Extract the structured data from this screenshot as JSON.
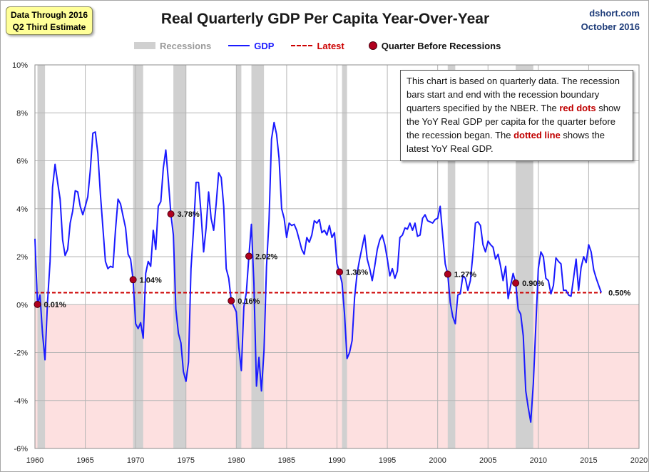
{
  "badge": {
    "line1": "Data Through 2016",
    "line2": "Q2 Third Estimate"
  },
  "title": "Real Quarterly GDP Per Capita Year-Over-Year",
  "source": {
    "site": "dshort.com",
    "date": "October 2016"
  },
  "legend": {
    "recessions": "Recessions",
    "gdp": "GDP",
    "latest": "Latest",
    "quarter_before": "Quarter Before Recessions"
  },
  "note": {
    "part1": "This chart is based on quarterly data. The recession bars start and end with the recession boundary quarters specified by the  NBER. The ",
    "red_dots": "red dots",
    "part2": " show the YoY Real GDP per capita for the quarter before the recession began. The ",
    "dotted_line": "dotted line",
    "part3": "  shows the latest YoY Real GDP."
  },
  "colors": {
    "gdp_line": "#1a1aff",
    "latest_line": "#cc0000",
    "dot_fill": "#b0001e",
    "dot_stroke": "#4a0010",
    "recession_bar": "#d0d0d0",
    "negative_zone": "#fde0e0",
    "grid": "#b5b5b5",
    "source_text": "#1f3d7a"
  },
  "chart_data": {
    "type": "line",
    "title": "Real Quarterly GDP Per Capita Year-Over-Year",
    "xlabel": "",
    "ylabel": "",
    "xlim": [
      1960,
      2020
    ],
    "ylim": [
      -6,
      10
    ],
    "x_ticks": [
      1960,
      1965,
      1970,
      1975,
      1980,
      1985,
      1990,
      1995,
      2000,
      2005,
      2010,
      2015,
      2020
    ],
    "y_ticks": [
      -6,
      -4,
      -2,
      0,
      2,
      4,
      6,
      8,
      10
    ],
    "y_tick_labels": [
      "-6%",
      "-4%",
      "-2%",
      "0%",
      "2%",
      "4%",
      "6%",
      "8%",
      "10%"
    ],
    "grid": true,
    "legend_position": "top",
    "recessions": [
      [
        1960.25,
        1961.0
      ],
      [
        1969.75,
        1970.75
      ],
      [
        1973.75,
        1975.0
      ],
      [
        1980.0,
        1980.5
      ],
      [
        1981.5,
        1982.75
      ],
      [
        1990.5,
        1991.0
      ],
      [
        2001.0,
        2001.75
      ],
      [
        2007.75,
        2009.5
      ]
    ],
    "series": [
      {
        "name": "GDP",
        "points": [
          [
            1960.0,
            2.75
          ],
          [
            1960.25,
            0.01
          ],
          [
            1960.5,
            0.4
          ],
          [
            1960.75,
            -1.2
          ],
          [
            1961.0,
            -2.3
          ],
          [
            1961.25,
            0.1
          ],
          [
            1961.5,
            1.8
          ],
          [
            1961.75,
            4.9
          ],
          [
            1962.0,
            5.85
          ],
          [
            1962.25,
            5.1
          ],
          [
            1962.5,
            4.4
          ],
          [
            1962.75,
            2.7
          ],
          [
            1963.0,
            2.05
          ],
          [
            1963.25,
            2.3
          ],
          [
            1963.5,
            3.4
          ],
          [
            1963.75,
            3.9
          ],
          [
            1964.0,
            4.75
          ],
          [
            1964.25,
            4.7
          ],
          [
            1964.5,
            4.1
          ],
          [
            1964.75,
            3.75
          ],
          [
            1965.0,
            4.1
          ],
          [
            1965.25,
            4.5
          ],
          [
            1965.5,
            5.6
          ],
          [
            1965.75,
            7.15
          ],
          [
            1966.0,
            7.2
          ],
          [
            1966.25,
            6.3
          ],
          [
            1966.5,
            4.6
          ],
          [
            1966.75,
            3.2
          ],
          [
            1967.0,
            1.8
          ],
          [
            1967.25,
            1.5
          ],
          [
            1967.5,
            1.6
          ],
          [
            1967.75,
            1.55
          ],
          [
            1968.0,
            3.1
          ],
          [
            1968.25,
            4.4
          ],
          [
            1968.5,
            4.2
          ],
          [
            1968.75,
            3.7
          ],
          [
            1969.0,
            3.2
          ],
          [
            1969.25,
            2.1
          ],
          [
            1969.5,
            1.9
          ],
          [
            1969.75,
            1.04
          ],
          [
            1970.0,
            -0.8
          ],
          [
            1970.25,
            -1.0
          ],
          [
            1970.5,
            -0.75
          ],
          [
            1970.75,
            -1.4
          ],
          [
            1971.0,
            1.3
          ],
          [
            1971.25,
            1.8
          ],
          [
            1971.5,
            1.6
          ],
          [
            1971.75,
            3.1
          ],
          [
            1972.0,
            2.3
          ],
          [
            1972.25,
            4.1
          ],
          [
            1972.5,
            4.3
          ],
          [
            1972.75,
            5.7
          ],
          [
            1973.0,
            6.45
          ],
          [
            1973.25,
            5.2
          ],
          [
            1973.5,
            3.78
          ],
          [
            1973.75,
            2.9
          ],
          [
            1974.0,
            -0.2
          ],
          [
            1974.25,
            -1.2
          ],
          [
            1974.5,
            -1.6
          ],
          [
            1974.75,
            -2.8
          ],
          [
            1975.0,
            -3.2
          ],
          [
            1975.25,
            -2.4
          ],
          [
            1975.5,
            1.5
          ],
          [
            1975.75,
            3.1
          ],
          [
            1976.0,
            5.1
          ],
          [
            1976.25,
            5.1
          ],
          [
            1976.5,
            3.8
          ],
          [
            1976.75,
            2.2
          ],
          [
            1977.0,
            3.2
          ],
          [
            1977.25,
            4.7
          ],
          [
            1977.5,
            3.6
          ],
          [
            1977.75,
            3.1
          ],
          [
            1978.0,
            4.2
          ],
          [
            1978.25,
            5.5
          ],
          [
            1978.5,
            5.3
          ],
          [
            1978.75,
            4.1
          ],
          [
            1979.0,
            1.5
          ],
          [
            1979.25,
            1.1
          ],
          [
            1979.5,
            0.16
          ],
          [
            1980.0,
            -0.3
          ],
          [
            1980.25,
            -1.8
          ],
          [
            1980.5,
            -2.75
          ],
          [
            1980.75,
            -0.1
          ],
          [
            1981.0,
            0.5
          ],
          [
            1981.25,
            2.02
          ],
          [
            1981.5,
            3.35
          ],
          [
            1981.75,
            0.9
          ],
          [
            1982.0,
            -3.4
          ],
          [
            1982.25,
            -2.2
          ],
          [
            1982.5,
            -3.6
          ],
          [
            1982.75,
            -1.9
          ],
          [
            1983.0,
            1.6
          ],
          [
            1983.25,
            3.5
          ],
          [
            1983.5,
            6.9
          ],
          [
            1983.75,
            7.6
          ],
          [
            1984.0,
            7.1
          ],
          [
            1984.25,
            6.1
          ],
          [
            1984.5,
            4.0
          ],
          [
            1984.75,
            3.6
          ],
          [
            1985.0,
            2.8
          ],
          [
            1985.25,
            3.4
          ],
          [
            1985.5,
            3.3
          ],
          [
            1985.75,
            3.35
          ],
          [
            1986.0,
            3.1
          ],
          [
            1986.25,
            2.7
          ],
          [
            1986.5,
            2.3
          ],
          [
            1986.75,
            2.1
          ],
          [
            1987.0,
            2.8
          ],
          [
            1987.25,
            2.6
          ],
          [
            1987.5,
            2.9
          ],
          [
            1987.75,
            3.5
          ],
          [
            1988.0,
            3.4
          ],
          [
            1988.25,
            3.55
          ],
          [
            1988.5,
            3.0
          ],
          [
            1988.75,
            3.1
          ],
          [
            1989.0,
            2.9
          ],
          [
            1989.25,
            3.3
          ],
          [
            1989.5,
            2.8
          ],
          [
            1989.75,
            3.0
          ],
          [
            1990.0,
            1.7
          ],
          [
            1990.25,
            1.36
          ],
          [
            1990.5,
            0.9
          ],
          [
            1990.75,
            -0.4
          ],
          [
            1991.0,
            -2.25
          ],
          [
            1991.25,
            -2.0
          ],
          [
            1991.5,
            -1.5
          ],
          [
            1991.75,
            0.3
          ],
          [
            1992.0,
            1.3
          ],
          [
            1992.25,
            1.9
          ],
          [
            1992.5,
            2.4
          ],
          [
            1992.75,
            2.9
          ],
          [
            1993.0,
            1.9
          ],
          [
            1993.25,
            1.5
          ],
          [
            1993.5,
            1.0
          ],
          [
            1993.75,
            1.6
          ],
          [
            1994.0,
            2.3
          ],
          [
            1994.25,
            2.7
          ],
          [
            1994.5,
            2.9
          ],
          [
            1994.75,
            2.5
          ],
          [
            1995.0,
            1.9
          ],
          [
            1995.25,
            1.2
          ],
          [
            1995.5,
            1.5
          ],
          [
            1995.75,
            1.1
          ],
          [
            1996.0,
            1.4
          ],
          [
            1996.25,
            2.8
          ],
          [
            1996.5,
            2.9
          ],
          [
            1996.75,
            3.2
          ],
          [
            1997.0,
            3.15
          ],
          [
            1997.25,
            3.4
          ],
          [
            1997.5,
            3.1
          ],
          [
            1997.75,
            3.4
          ],
          [
            1998.0,
            2.85
          ],
          [
            1998.25,
            2.9
          ],
          [
            1998.5,
            3.6
          ],
          [
            1998.75,
            3.75
          ],
          [
            1999.0,
            3.5
          ],
          [
            1999.25,
            3.45
          ],
          [
            1999.5,
            3.4
          ],
          [
            1999.75,
            3.55
          ],
          [
            2000.0,
            3.6
          ],
          [
            2000.25,
            4.1
          ],
          [
            2000.5,
            2.9
          ],
          [
            2000.75,
            1.7
          ],
          [
            2001.0,
            1.27
          ],
          [
            2001.25,
            0.1
          ],
          [
            2001.5,
            -0.5
          ],
          [
            2001.75,
            -0.8
          ],
          [
            2002.0,
            0.4
          ],
          [
            2002.25,
            0.45
          ],
          [
            2002.5,
            1.2
          ],
          [
            2002.75,
            1.1
          ],
          [
            2003.0,
            0.6
          ],
          [
            2003.25,
            1.0
          ],
          [
            2003.5,
            2.1
          ],
          [
            2003.75,
            3.4
          ],
          [
            2004.0,
            3.45
          ],
          [
            2004.25,
            3.3
          ],
          [
            2004.5,
            2.5
          ],
          [
            2004.75,
            2.2
          ],
          [
            2005.0,
            2.65
          ],
          [
            2005.25,
            2.5
          ],
          [
            2005.5,
            2.4
          ],
          [
            2005.75,
            1.9
          ],
          [
            2006.0,
            2.1
          ],
          [
            2006.25,
            1.6
          ],
          [
            2006.5,
            1.0
          ],
          [
            2006.75,
            1.6
          ],
          [
            2007.0,
            0.25
          ],
          [
            2007.25,
            0.8
          ],
          [
            2007.5,
            1.3
          ],
          [
            2007.75,
            0.9
          ],
          [
            2008.0,
            -0.2
          ],
          [
            2008.25,
            -0.4
          ],
          [
            2008.5,
            -1.3
          ],
          [
            2008.75,
            -3.6
          ],
          [
            2009.0,
            -4.3
          ],
          [
            2009.25,
            -4.9
          ],
          [
            2009.5,
            -3.3
          ],
          [
            2009.75,
            -0.9
          ],
          [
            2010.0,
            1.5
          ],
          [
            2010.25,
            2.2
          ],
          [
            2010.5,
            2.0
          ],
          [
            2010.75,
            1.1
          ],
          [
            2011.0,
            1.0
          ],
          [
            2011.25,
            0.45
          ],
          [
            2011.5,
            0.8
          ],
          [
            2011.75,
            1.95
          ],
          [
            2012.0,
            1.8
          ],
          [
            2012.25,
            1.7
          ],
          [
            2012.5,
            0.6
          ],
          [
            2012.75,
            0.6
          ],
          [
            2013.0,
            0.4
          ],
          [
            2013.25,
            0.35
          ],
          [
            2013.5,
            1.1
          ],
          [
            2013.75,
            1.9
          ],
          [
            2014.0,
            0.6
          ],
          [
            2014.25,
            1.55
          ],
          [
            2014.5,
            2.0
          ],
          [
            2014.75,
            1.75
          ],
          [
            2015.0,
            2.5
          ],
          [
            2015.25,
            2.2
          ],
          [
            2015.5,
            1.45
          ],
          [
            2015.75,
            1.1
          ],
          [
            2016.0,
            0.8
          ],
          [
            2016.25,
            0.5
          ]
        ]
      }
    ],
    "latest_value": 0.5,
    "quarter_before_recessions": [
      {
        "x": 1960.25,
        "y": 0.01,
        "label": "0.01%"
      },
      {
        "x": 1969.75,
        "y": 1.04,
        "label": "1.04%"
      },
      {
        "x": 1973.5,
        "y": 3.78,
        "label": "3.78%"
      },
      {
        "x": 1979.5,
        "y": 0.16,
        "label": "0.16%"
      },
      {
        "x": 1981.25,
        "y": 2.02,
        "label": "2.02%"
      },
      {
        "x": 1990.25,
        "y": 1.36,
        "label": "1.36%"
      },
      {
        "x": 2001.0,
        "y": 1.27,
        "label": "1.27%"
      },
      {
        "x": 2007.75,
        "y": 0.9,
        "label": "0.90%"
      }
    ],
    "latest_label": {
      "x": 2016.25,
      "y": 0.5,
      "label": "0.50%"
    }
  }
}
